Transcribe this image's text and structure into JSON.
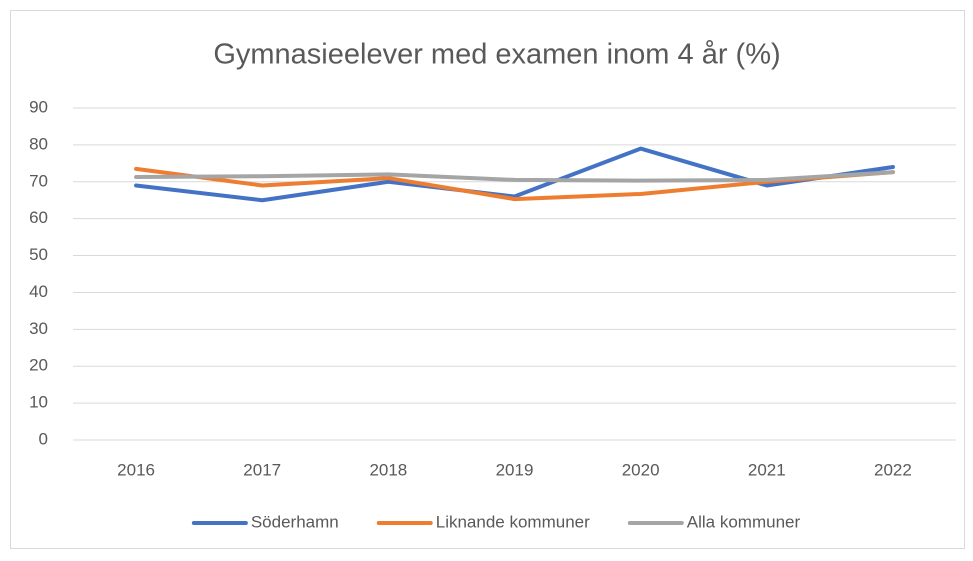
{
  "chart_data": {
    "type": "line",
    "title": "Gymnasieelever med examen inom 4 år (%)",
    "categories": [
      "2016",
      "2017",
      "2018",
      "2019",
      "2020",
      "2021",
      "2022"
    ],
    "series": [
      {
        "name": "Söderhamn",
        "color": "#4472c4",
        "values": [
          69,
          65,
          70,
          66,
          79,
          69,
          74
        ]
      },
      {
        "name": "Liknande kommuner",
        "color": "#ed7d31",
        "values": [
          73.5,
          69,
          71,
          65.3,
          66.7,
          70,
          72.6
        ]
      },
      {
        "name": "Alla kommuner",
        "color": "#a5a5a5",
        "values": [
          71.3,
          71.5,
          72,
          70.5,
          70.3,
          70.5,
          72.6
        ]
      }
    ],
    "ylim": [
      0,
      90
    ],
    "yticks": [
      0,
      10,
      20,
      30,
      40,
      50,
      60,
      70,
      80,
      90
    ],
    "grid": true,
    "legend": "bottom"
  }
}
